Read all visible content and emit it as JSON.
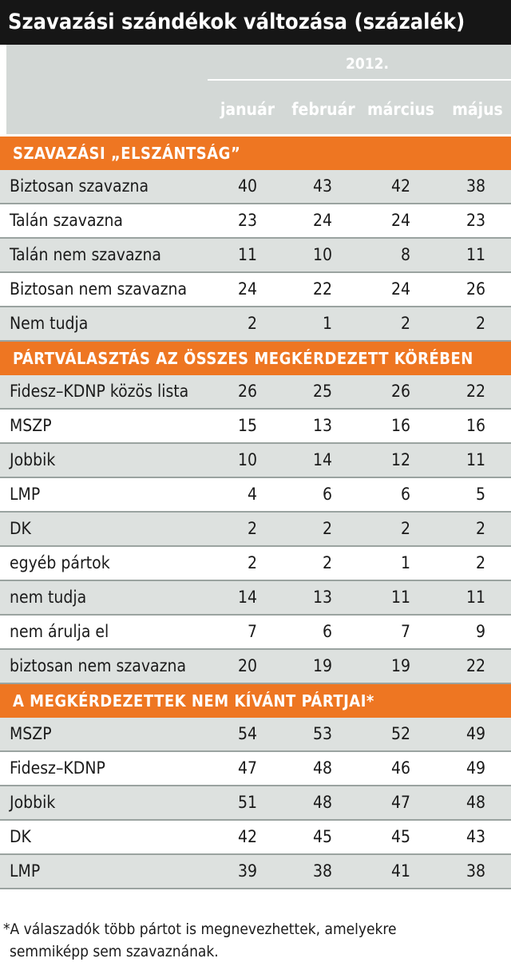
{
  "chart_data": {
    "type": "table",
    "title": "Szavazási szándékok változása (százalék)",
    "year": "2012.",
    "columns": [
      "január",
      "február",
      "március",
      "május"
    ],
    "sections": [
      {
        "title": "SZAVAZÁSI „ELSZÁNTSÁG”",
        "rows": [
          {
            "label": "Biztosan szavazna",
            "values": [
              40,
              43,
              42,
              38
            ]
          },
          {
            "label": "Talán szavazna",
            "values": [
              23,
              24,
              24,
              23
            ]
          },
          {
            "label": "Talán nem szavazna",
            "values": [
              11,
              10,
              8,
              11
            ]
          },
          {
            "label": "Biztosan nem szavazna",
            "values": [
              24,
              22,
              24,
              26
            ]
          },
          {
            "label": "Nem tudja",
            "values": [
              2,
              1,
              2,
              2
            ]
          }
        ]
      },
      {
        "title": "PÁRTVÁLASZTÁS AZ ÖSSZES MEGKÉRDEZETT KÖRÉBEN",
        "rows": [
          {
            "label": "Fidesz–KDNP közös lista",
            "values": [
              26,
              25,
              26,
              22
            ]
          },
          {
            "label": "MSZP",
            "values": [
              15,
              13,
              16,
              16
            ]
          },
          {
            "label": "Jobbik",
            "values": [
              10,
              14,
              12,
              11
            ]
          },
          {
            "label": "LMP",
            "values": [
              4,
              6,
              6,
              5
            ]
          },
          {
            "label": "DK",
            "values": [
              2,
              2,
              2,
              2
            ]
          },
          {
            "label": "egyéb pártok",
            "values": [
              2,
              2,
              1,
              2
            ]
          },
          {
            "label": "nem tudja",
            "values": [
              14,
              13,
              11,
              11
            ]
          },
          {
            "label": "nem árulja el",
            "values": [
              7,
              6,
              7,
              9
            ]
          },
          {
            "label": "biztosan nem szavazna",
            "values": [
              20,
              19,
              19,
              22
            ]
          }
        ]
      },
      {
        "title": "A MEGKÉRDEZETTEK NEM KÍVÁNT PÁRTJAI*",
        "rows": [
          {
            "label": "MSZP",
            "values": [
              54,
              53,
              52,
              49
            ]
          },
          {
            "label": "Fidesz–KDNP",
            "values": [
              47,
              48,
              46,
              49
            ]
          },
          {
            "label": "Jobbik",
            "values": [
              51,
              48,
              47,
              48
            ]
          },
          {
            "label": "DK",
            "values": [
              42,
              45,
              45,
              43
            ]
          },
          {
            "label": "LMP",
            "values": [
              39,
              38,
              41,
              38
            ]
          }
        ]
      }
    ]
  },
  "footnote": {
    "line1": "*A válaszadók több pártot is megnevezhettek, amelyekre",
    "line2": "semmiképp sem szavaznának."
  },
  "colors": {
    "title_bg": "#161616",
    "header_bg": "#d3d8d6",
    "section_band": "#ee7622",
    "row_shade": "#dde1df"
  }
}
